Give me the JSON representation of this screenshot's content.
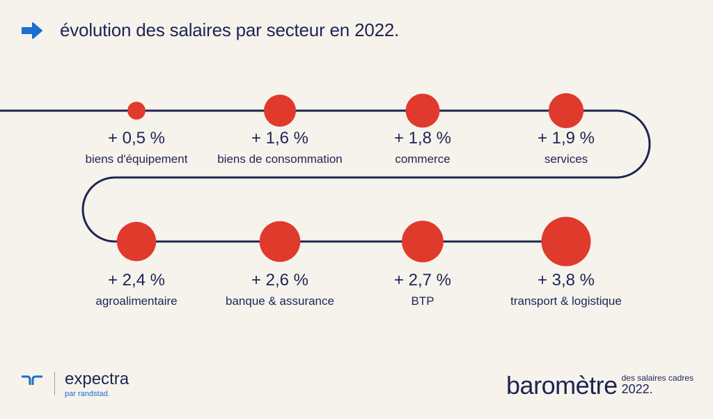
{
  "header": {
    "title": "évolution des salaires par secteur en 2022.",
    "arrow_icon": "arrow-right-icon",
    "arrow_color": "#1a6fd0"
  },
  "chart_data": {
    "type": "bubble",
    "title": "évolution des salaires par secteur en 2022.",
    "unit": "%",
    "categories": [
      "biens d'équipement",
      "biens de consommation",
      "commerce",
      "services",
      "agroalimentaire",
      "banque & assurance",
      "BTP",
      "transport & logistique"
    ],
    "values": [
      0.5,
      1.6,
      1.8,
      1.9,
      2.4,
      2.6,
      2.7,
      3.8
    ],
    "labels": [
      "+ 0,5 %",
      "+ 1,6 %",
      "+ 1,8 %",
      "+ 1,9 %",
      "+ 2,4 %",
      "+ 2,6 %",
      "+ 2,7 %",
      "+ 3,8 %"
    ],
    "colors": {
      "bubble": "#e03a2c",
      "line": "#1e2452"
    }
  },
  "footer": {
    "brand_name": "expectra",
    "brand_sub": "par randstad.",
    "brand_icon": "randstad-logo-icon",
    "barometre_word": "baromètre",
    "barometre_sub": "des salaires cadres",
    "barometre_year": "2022."
  }
}
